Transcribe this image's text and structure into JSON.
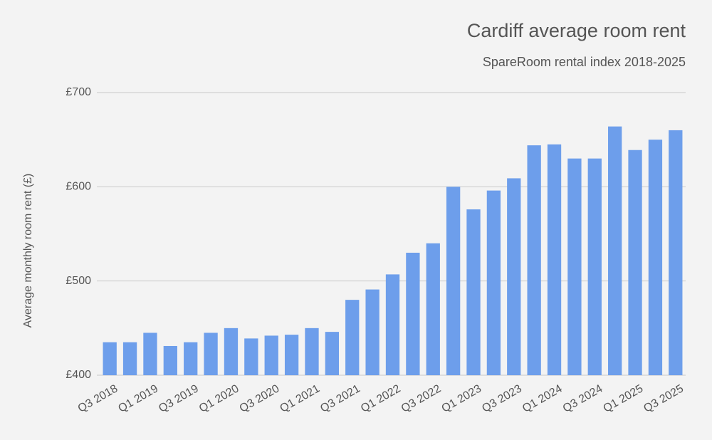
{
  "chart_data": {
    "type": "bar",
    "title": "Cardiff average room rent",
    "subtitle": "SpareRoom rental index 2018-2025",
    "y_label": "Average monthly room rent (£)",
    "categories": [
      "Q3 2018",
      null,
      "Q1 2019",
      null,
      "Q3 2019",
      null,
      "Q1 2020",
      null,
      "Q3 2020",
      null,
      "Q1 2021",
      null,
      "Q3 2021",
      null,
      "Q1 2022",
      null,
      "Q3 2022",
      null,
      "Q1 2023",
      null,
      "Q3 2023",
      null,
      "Q1 2024",
      null,
      "Q3 2024",
      null,
      "Q1 2025",
      null,
      "Q3 2025"
    ],
    "values": [
      435,
      435,
      445,
      431,
      435,
      445,
      450,
      439,
      442,
      443,
      450,
      446,
      480,
      491,
      507,
      530,
      540,
      600,
      576,
      596,
      609,
      644,
      645,
      630,
      630,
      664,
      639,
      650,
      660
    ],
    "color": "#6d9eeb",
    "ylim": [
      400,
      700
    ],
    "yticks": [
      {
        "value": 400,
        "label": "£400"
      },
      {
        "value": 500,
        "label": "£500"
      },
      {
        "value": 600,
        "label": "£600"
      },
      {
        "value": 700,
        "label": "£700"
      }
    ],
    "grid": true
  }
}
